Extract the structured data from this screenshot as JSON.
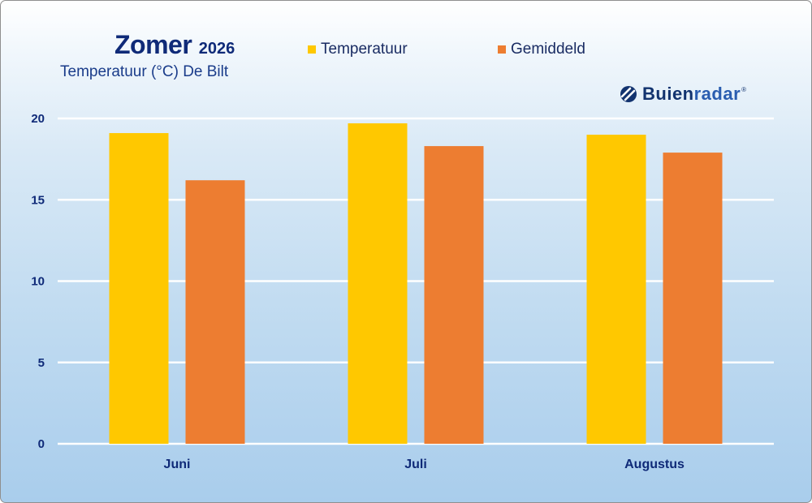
{
  "header": {
    "title": "Zomer",
    "year": "2026",
    "subtitle": "Temperatuur (°C) De Bilt"
  },
  "logo": {
    "name": "Buienradar",
    "name_part1": "Buien",
    "name_part2": "radar",
    "registered_mark": "®",
    "icon": "buienradar-logo-icon",
    "color_part1": "#12336f",
    "color_part2": "#2a5db0"
  },
  "colors": {
    "temperatuur": "#FFC800",
    "gemiddeld": "#ED7D31",
    "text": "#0f2a78",
    "gridline": "#ffffff"
  },
  "chart_data": {
    "type": "bar",
    "categories": [
      "Juni",
      "Juli",
      "Augustus"
    ],
    "series": [
      {
        "name": "Temperatuur",
        "values": [
          19.1,
          19.7,
          19.0
        ],
        "color": "#FFC800"
      },
      {
        "name": "Gemiddeld",
        "values": [
          16.2,
          18.3,
          17.9
        ],
        "color": "#ED7D31"
      }
    ],
    "title": "Zomer 2026",
    "subtitle": "Temperatuur (°C) De Bilt",
    "xlabel": "",
    "ylabel": "",
    "ylim": [
      0,
      20
    ],
    "yticks": [
      0,
      5,
      10,
      15,
      20
    ],
    "grid": true,
    "legend": "top"
  }
}
